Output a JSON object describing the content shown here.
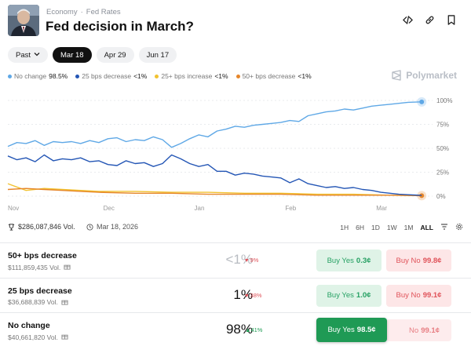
{
  "header": {
    "breadcrumb": [
      "Economy",
      "Fed Rates"
    ],
    "title": "Fed decision in March?"
  },
  "tabs": [
    {
      "label": "Past",
      "active": false,
      "dropdown": true
    },
    {
      "label": "Mar 18",
      "active": true
    },
    {
      "label": "Apr 29",
      "active": false
    },
    {
      "label": "Jun 17",
      "active": false
    }
  ],
  "legend": [
    {
      "label": "No change",
      "value": "98.5%",
      "color": "#5fa8e6"
    },
    {
      "label": "25 bps decrease",
      "value": "<1%",
      "color": "#2456b5"
    },
    {
      "label": "25+ bps increase",
      "value": "<1%",
      "color": "#f2c230"
    },
    {
      "label": "50+ bps decrease",
      "value": "<1%",
      "color": "#e6862a"
    }
  ],
  "brand": {
    "name": "Polymarket"
  },
  "chart_data": {
    "type": "line",
    "x_ticks": [
      "Nov",
      "Dec",
      "Jan",
      "Feb",
      "Mar"
    ],
    "y_ticks": [
      "100%",
      "75%",
      "50%",
      "25%",
      "0%"
    ],
    "ylim": [
      0,
      100
    ],
    "xlim": [
      0,
      4.6
    ],
    "series": [
      {
        "name": "No change",
        "color": "#5fa8e6",
        "x": [
          0,
          0.1,
          0.2,
          0.3,
          0.4,
          0.5,
          0.6,
          0.7,
          0.8,
          0.9,
          1.0,
          1.1,
          1.2,
          1.3,
          1.4,
          1.5,
          1.6,
          1.7,
          1.8,
          1.9,
          2.0,
          2.1,
          2.2,
          2.3,
          2.4,
          2.5,
          2.6,
          2.7,
          2.8,
          2.9,
          3.0,
          3.1,
          3.2,
          3.3,
          3.4,
          3.5,
          3.6,
          3.7,
          3.8,
          3.9,
          4.0,
          4.1,
          4.2,
          4.3,
          4.4,
          4.55
        ],
        "values": [
          52,
          56,
          55,
          58,
          53,
          57,
          56,
          57,
          55,
          58,
          56,
          60,
          61,
          57,
          59,
          58,
          62,
          59,
          51,
          55,
          60,
          64,
          62,
          68,
          70,
          73,
          72,
          74,
          75,
          76,
          77,
          79,
          78,
          84,
          86,
          88,
          89,
          91,
          90,
          92,
          94,
          95,
          96,
          97,
          98,
          98.5
        ]
      },
      {
        "name": "25 bps decrease",
        "color": "#2456b5",
        "x": [
          0,
          0.1,
          0.2,
          0.3,
          0.4,
          0.5,
          0.6,
          0.7,
          0.8,
          0.9,
          1.0,
          1.1,
          1.2,
          1.3,
          1.4,
          1.5,
          1.6,
          1.7,
          1.8,
          1.9,
          2.0,
          2.1,
          2.2,
          2.3,
          2.4,
          2.5,
          2.6,
          2.7,
          2.8,
          2.9,
          3.0,
          3.1,
          3.2,
          3.3,
          3.4,
          3.5,
          3.6,
          3.7,
          3.8,
          3.9,
          4.0,
          4.1,
          4.2,
          4.3,
          4.4,
          4.55
        ],
        "values": [
          42,
          38,
          40,
          36,
          43,
          37,
          39,
          38,
          40,
          36,
          37,
          33,
          32,
          37,
          34,
          35,
          31,
          34,
          43,
          39,
          34,
          31,
          33,
          26,
          26,
          22,
          24,
          23,
          21,
          20,
          19,
          14,
          18,
          13,
          11,
          9,
          10,
          8,
          9,
          7,
          6,
          4,
          3,
          2,
          1.5,
          0.8
        ]
      },
      {
        "name": "25+ bps increase",
        "color": "#f2c230",
        "x": [
          0,
          0.2,
          0.4,
          0.6,
          0.8,
          1.0,
          1.4,
          1.8,
          2.2,
          2.6,
          3.0,
          3.4,
          3.8,
          4.2,
          4.55
        ],
        "values": [
          13,
          6,
          8,
          7,
          6,
          5,
          5,
          4,
          4,
          3,
          3,
          2,
          2,
          1,
          0.5
        ]
      },
      {
        "name": "50+ bps decrease",
        "color": "#e6862a",
        "x": [
          0,
          0.2,
          0.4,
          0.6,
          0.8,
          1.0,
          1.4,
          1.8,
          2.2,
          2.6,
          3.0,
          3.4,
          3.8,
          4.2,
          4.55
        ],
        "values": [
          7,
          8,
          7,
          6,
          5,
          4,
          3,
          3,
          2,
          2,
          2,
          1,
          1,
          1,
          0.5
        ]
      }
    ]
  },
  "stats": {
    "volume": "$286,087,846 Vol.",
    "end_date": "Mar 18, 2026",
    "ranges": [
      "1H",
      "6H",
      "1D",
      "1W",
      "1M",
      "ALL"
    ],
    "active_range": "ALL"
  },
  "outcomes": [
    {
      "name": "50+ bps decrease",
      "volume": "$111,859,435 Vol.",
      "probability": "<1%",
      "change": "9%",
      "change_dir": "down",
      "yes_label": "Buy Yes",
      "yes_price": "0.3¢",
      "no_label": "Buy No",
      "no_price": "99.8¢"
    },
    {
      "name": "25 bps decrease",
      "volume": "$36,688,839 Vol.",
      "probability": "1%",
      "change": "38%",
      "change_dir": "down",
      "yes_label": "Buy Yes",
      "yes_price": "1.0¢",
      "no_label": "Buy No",
      "no_price": "99.1¢"
    },
    {
      "name": "No change",
      "volume": "$40,661,820 Vol.",
      "probability": "98%",
      "change": "41%",
      "change_dir": "up",
      "yes_label": "Buy Yes",
      "yes_price": "98.5¢",
      "no_label": "No",
      "no_price": "99.1¢"
    }
  ]
}
